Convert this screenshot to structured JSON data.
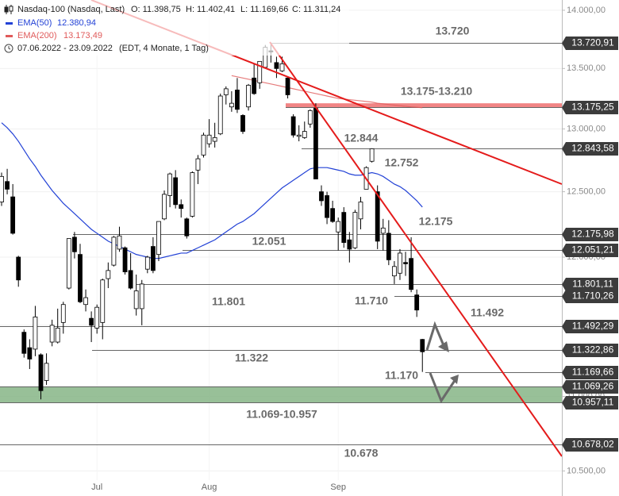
{
  "chart_data": {
    "type": "candlestick",
    "title": "Nasdaq-100 (Nasdaq, Last)",
    "quote": [
      "O: 11.398,75",
      "H: 11.402,41",
      "L: 11.169,66",
      "C: 11.311,24"
    ],
    "period": "07.06.2022 - 23.09.2022",
    "period_note": "(EDT, 4 Monate, 1 Tag)",
    "categories": [
      null,
      null,
      null,
      null,
      null,
      null,
      null,
      null,
      null,
      null,
      null,
      null,
      null,
      null,
      null,
      null,
      null,
      "Jul",
      null,
      null,
      null,
      null,
      null,
      null,
      null,
      null,
      null,
      null,
      null,
      null,
      null,
      null,
      null,
      null,
      null,
      null,
      null,
      "Aug",
      null,
      null,
      null,
      null,
      null,
      null,
      null,
      null,
      null,
      null,
      null,
      null,
      null,
      null,
      null,
      null,
      null,
      null,
      null,
      null,
      null,
      null,
      "Sep",
      null,
      null,
      null,
      null,
      null,
      null,
      null,
      null,
      null,
      null,
      null,
      null,
      null,
      null,
      null
    ],
    "open": [
      12420,
      12580,
      12460,
      12000,
      11450,
      11340,
      11330,
      11290,
      11110,
      11380,
      11380,
      11520,
      11770,
      12150,
      12020,
      11650,
      11550,
      11480,
      11520,
      11840,
      11940,
      12060,
      12070,
      11900,
      11620,
      11620,
      11910,
      12080,
      12020,
      12290,
      12470,
      12610,
      12400,
      12290,
      12310,
      12670,
      12790,
      12880,
      12900,
      12960,
      13280,
      13180,
      13320,
      13110,
      13180,
      13420,
      13380,
      13510,
      13650,
      13550,
      13480,
      13420,
      13100,
      12940,
      12930,
      13040,
      13170,
      12500,
      12470,
      12370,
      12190,
      12340,
      12130,
      12070,
      12290,
      12520,
      12740,
      12500,
      12180,
      12180,
      11860,
      11880,
      11960,
      11990,
      11720,
      11398.75
    ],
    "high": [
      12650,
      12680,
      12560,
      12010,
      11470,
      11400,
      11640,
      11300,
      11300,
      11540,
      11620,
      11670,
      12140,
      12190,
      12100,
      11760,
      11600,
      11650,
      11840,
      11960,
      12160,
      12230,
      12080,
      12030,
      11870,
      11830,
      12010,
      12150,
      12270,
      12510,
      12650,
      12670,
      12440,
      12300,
      12660,
      12790,
      12970,
      13080,
      13050,
      13290,
      13350,
      13310,
      13420,
      13120,
      13370,
      13540,
      13560,
      13700,
      13720.91,
      13600,
      13600,
      13430,
      13120,
      13030,
      13060,
      13160,
      13210,
      12550,
      12500,
      12430,
      12300,
      12380,
      12190,
      12360,
      12460,
      12700,
      12844,
      12550,
      12290,
      12280,
      11970,
      12060,
      12040,
      12150,
      11760,
      11402.41
    ],
    "low": [
      12390,
      12480,
      12170,
      11780,
      11270,
      11190,
      11280,
      10980,
      11080,
      11350,
      11370,
      11440,
      11760,
      11990,
      11660,
      11600,
      11380,
      11440,
      11400,
      11770,
      11930,
      12040,
      11870,
      11760,
      11570,
      11500,
      11880,
      11880,
      11970,
      12280,
      12380,
      12370,
      12300,
      12140,
      12300,
      12560,
      12770,
      12850,
      12850,
      12950,
      13200,
      13140,
      13130,
      12960,
      13150,
      13280,
      13330,
      13500,
      13550,
      13420,
      13470,
      13250,
      12930,
      12900,
      12920,
      13010,
      12600,
      12390,
      12250,
      12260,
      12050,
      12070,
      11960,
      12060,
      12210,
      12520,
      12730,
      12060,
      12050,
      11940,
      11800,
      11830,
      11860,
      11740,
      11560,
      11169.66
    ],
    "close": [
      12620,
      12520,
      12180,
      11830,
      11300,
      11260,
      11560,
      11040,
      11230,
      11500,
      11480,
      11650,
      12140,
      12040,
      11670,
      11700,
      11500,
      11630,
      11830,
      11900,
      12150,
      12160,
      11890,
      11770,
      11750,
      11800,
      12000,
      11900,
      12270,
      12480,
      12640,
      12400,
      12370,
      12160,
      12650,
      12760,
      12950,
      12950,
      12930,
      13270,
      13330,
      13210,
      13160,
      12980,
      13360,
      13290,
      13560,
      13680,
      13640,
      13500,
      13540,
      13280,
      12950,
      12950,
      12980,
      13150,
      12600,
      12430,
      12300,
      12270,
      12270,
      12110,
      12060,
      12340,
      12420,
      12690,
      12840,
      12120,
      12220,
      11980,
      11930,
      12030,
      11950,
      11760,
      11610,
      11311.24
    ],
    "up_color": "#ffffff",
    "down_color": "#000000",
    "series": [
      {
        "name": "EMA(50)",
        "value_label": "12.380,94",
        "color": "#2342d6",
        "values": [
          13050,
          13010,
          12960,
          12900,
          12830,
          12760,
          12700,
          12630,
          12570,
          12510,
          12460,
          12410,
          12370,
          12330,
          12290,
          12250,
          12210,
          12180,
          12150,
          12120,
          12100,
          12080,
          12060,
          12040,
          12020,
          12010,
          12000,
          11990,
          11990,
          12000,
          12010,
          12020,
          12030,
          12030,
          12050,
          12070,
          12090,
          12110,
          12130,
          12160,
          12190,
          12220,
          12250,
          12270,
          12300,
          12330,
          12370,
          12410,
          12450,
          12490,
          12530,
          12560,
          12590,
          12620,
          12650,
          12680,
          12690,
          12690,
          12690,
          12680,
          12670,
          12660,
          12640,
          12630,
          12630,
          12640,
          12650,
          12640,
          12620,
          12590,
          12560,
          12540,
          12510,
          12470,
          12430,
          12380.94
        ]
      },
      {
        "name": "EMA(200)",
        "value_label": "13.173,49",
        "color": "#e05a5a",
        "values": [
          null,
          null,
          null,
          null,
          null,
          null,
          null,
          null,
          null,
          null,
          null,
          null,
          null,
          null,
          null,
          null,
          null,
          null,
          null,
          null,
          null,
          null,
          null,
          null,
          null,
          null,
          null,
          null,
          null,
          null,
          null,
          null,
          null,
          null,
          null,
          null,
          null,
          null,
          null,
          null,
          null,
          13440,
          13430,
          13420,
          13410,
          13400,
          13390,
          13380,
          13370,
          13360,
          13350,
          13340,
          13330,
          13320,
          13310,
          13300,
          13290,
          13280,
          13270,
          13260,
          13250,
          13245,
          13240,
          13235,
          13230,
          13225,
          13220,
          13210,
          13205,
          13200,
          13195,
          13190,
          13185,
          13180,
          13177,
          13173.49
        ]
      }
    ],
    "ylim": [
      10440,
      14090
    ],
    "log_scale": true,
    "grid": true,
    "yticks": [
      {
        "value": 10500,
        "label": "10.500,00"
      },
      {
        "value": 11000,
        "label": "11.000,00"
      },
      {
        "value": 11500,
        "label": "11.500,00"
      },
      {
        "value": 12000,
        "label": "12.000,00"
      },
      {
        "value": 12500,
        "label": "12.500,00"
      },
      {
        "value": 13000,
        "label": "13.000,00"
      },
      {
        "value": 13500,
        "label": "13.500,00"
      },
      {
        "value": 14000,
        "label": "14.000,00"
      }
    ],
    "levels": [
      {
        "value": 13720.91,
        "label": "13.720,91"
      },
      {
        "value": 13175.25,
        "label": "13.175,25"
      },
      {
        "value": 12843.58,
        "label": "12.843,58"
      },
      {
        "value": 12175.98,
        "label": "12.175,98"
      },
      {
        "value": 12051.21,
        "label": "12.051,21"
      },
      {
        "value": 11801.11,
        "label": "11.801,11"
      },
      {
        "value": 11710.26,
        "label": "11.710,26"
      },
      {
        "value": 11492.29,
        "label": "11.492,29"
      },
      {
        "value": 11322.86,
        "label": "11.322,86"
      },
      {
        "value": 11169.66,
        "label": "11.169,66"
      },
      {
        "value": 11069.26,
        "label": "11.069,26"
      },
      {
        "value": 10957.11,
        "label": "10.957,11"
      },
      {
        "value": 10678.02,
        "label": "10.678,02"
      }
    ],
    "zones": [
      {
        "from": 13175.25,
        "to": 13210,
        "color": "#f07878"
      },
      {
        "from": 10957.11,
        "to": 11069.26,
        "color": "#86b586"
      }
    ],
    "annotations": [
      "13.720",
      "13.175-13.210",
      "12.844",
      "12.752",
      "12.175",
      "12.051",
      "11.801",
      "11.710",
      "11.492",
      "11.322",
      "11.170",
      "11.069-10.957",
      "10.678"
    ]
  }
}
